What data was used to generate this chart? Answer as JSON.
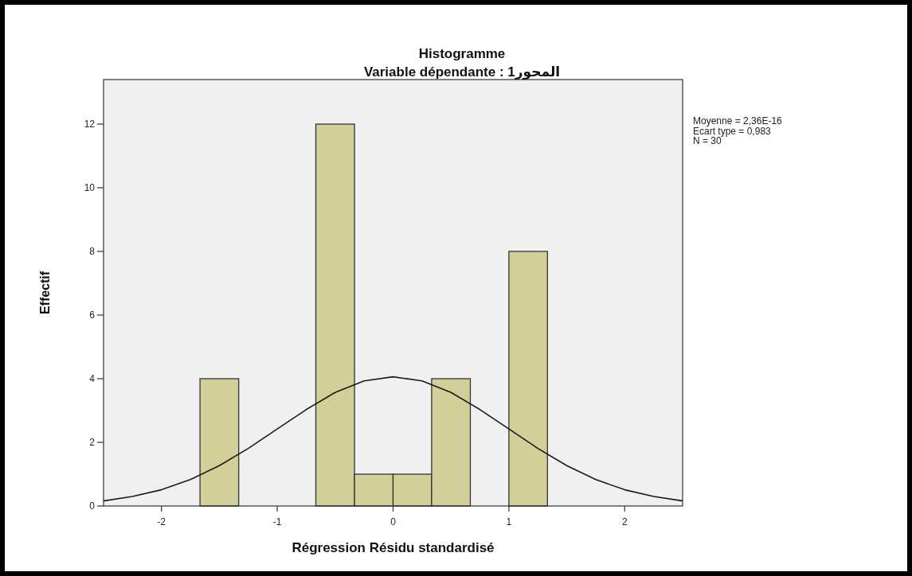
{
  "chart_data": {
    "type": "histogram",
    "title": "Histogramme",
    "subtitle": "Variable dépendante : المحور1",
    "xlabel": "Régression Résidu standardisé",
    "ylabel": "Effectif",
    "annotations": [
      "Moyenne = 2,36E-16",
      "Ecart type = 0,983",
      "N = 30"
    ],
    "xlim": [
      -2.5,
      2.5
    ],
    "xticks": [
      -2,
      -1,
      0,
      1,
      2
    ],
    "ylim": [
      0,
      13.4
    ],
    "yticks": [
      0,
      2,
      4,
      6,
      8,
      10,
      12
    ],
    "series": [
      {
        "color": "#d3cf98",
        "bins": [
          -1.667,
          -1.333,
          -1,
          -0.667,
          -0.333,
          0,
          0.333,
          0.667,
          1,
          1.333
        ],
        "values": [
          4,
          0,
          0,
          12,
          1,
          1,
          4,
          0,
          8
        ]
      },
      {
        "type": "line",
        "color": "#1a1a1a",
        "x": [
          -2.5,
          -2.25,
          -2,
          -1.75,
          -1.5,
          -1.25,
          -1,
          -0.75,
          -0.5,
          -0.25,
          0,
          0.25,
          0.5,
          0.75,
          1,
          1.25,
          1.5,
          1.75,
          2,
          2.25,
          2.5
        ],
        "values": [
          0.16,
          0.3,
          0.51,
          0.83,
          1.27,
          1.81,
          2.42,
          3.03,
          3.57,
          3.93,
          4.06,
          3.93,
          3.57,
          3.03,
          2.42,
          1.81,
          1.27,
          0.83,
          0.51,
          0.3,
          0.16
        ]
      }
    ]
  }
}
